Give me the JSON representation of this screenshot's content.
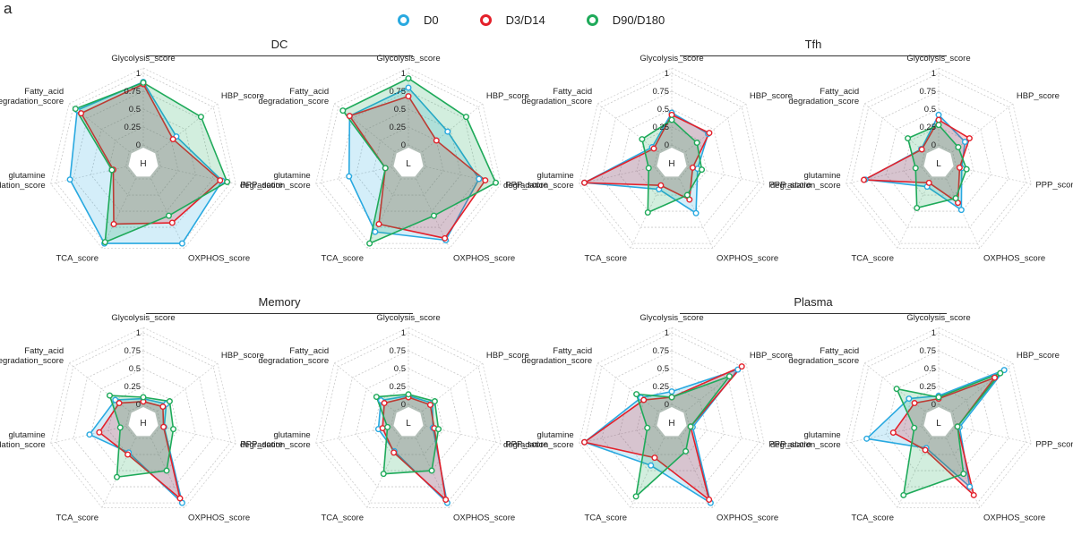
{
  "panel_letter": "a",
  "legend": [
    {
      "label": "D0",
      "color": "#29a9e0"
    },
    {
      "label": "D3/D14",
      "color": "#e4202a"
    },
    {
      "label": "D90/D180",
      "color": "#1faa5a"
    }
  ],
  "groups": [
    {
      "title": "DC"
    },
    {
      "title": "Tfh"
    },
    {
      "title": "Memory"
    },
    {
      "title": "Plasma"
    }
  ],
  "chart_data": {
    "type": "radar",
    "axes": [
      "Glycolysis_score",
      "HBP_score",
      "PPP_score",
      "OXPHOS_score",
      "TCA_score",
      "glutamine degradation_score",
      "Fatty_acid degradation_score"
    ],
    "tick_labels": [
      "0",
      "0.25",
      "0.5",
      "0.75",
      "1"
    ],
    "range": [
      0,
      1
    ],
    "series_names": [
      "D0",
      "D3/D14",
      "D90/D180"
    ],
    "charts": [
      {
        "group": "DC",
        "center_label": "H",
        "series": [
          {
            "name": "D0",
            "values": [
              0.88,
              0.34,
              0.88,
              1.0,
              1.0,
              0.8,
              0.93
            ]
          },
          {
            "name": "D3/D14",
            "values": [
              0.85,
              0.28,
              0.85,
              0.68,
              0.7,
              0.18,
              0.86
            ]
          },
          {
            "name": "D90/D180",
            "values": [
              0.87,
              0.78,
              0.95,
              0.57,
              0.98,
              0.2,
              0.96
            ]
          }
        ]
      },
      {
        "group": "DC",
        "center_label": "L",
        "series": [
          {
            "name": "D0",
            "values": [
              0.8,
              0.45,
              0.76,
              0.95,
              0.82,
              0.6,
              0.8
            ]
          },
          {
            "name": "D3/D14",
            "values": [
              0.68,
              0.25,
              0.85,
              0.92,
              0.7,
              0.08,
              0.8
            ]
          },
          {
            "name": "D90/D180",
            "values": [
              0.93,
              0.78,
              1.0,
              0.57,
              1.0,
              0.08,
              0.92
            ]
          }
        ]
      },
      {
        "group": "Tfh",
        "center_label": "H",
        "series": [
          {
            "name": "D0",
            "values": [
              0.45,
              0.4,
              0.12,
              0.53,
              0.16,
              1.0,
              0.1
            ]
          },
          {
            "name": "D3/D14",
            "values": [
              0.42,
              0.42,
              0.05,
              0.32,
              0.1,
              1.0,
              0.07
            ]
          },
          {
            "name": "D90/D180",
            "values": [
              0.35,
              0.2,
              0.18,
              0.25,
              0.52,
              0.08,
              0.28
            ]
          }
        ]
      },
      {
        "group": "Tfh",
        "center_label": "L",
        "series": [
          {
            "name": "D0",
            "values": [
              0.42,
              0.22,
              0.08,
              0.48,
              0.12,
              0.8,
              0.06
            ]
          },
          {
            "name": "D3/D14",
            "values": [
              0.35,
              0.3,
              0.05,
              0.37,
              0.06,
              0.82,
              0.05
            ]
          },
          {
            "name": "D90/D180",
            "values": [
              0.28,
              0.1,
              0.15,
              0.3,
              0.45,
              0.08,
              0.3
            ]
          }
        ]
      },
      {
        "group": "Memory",
        "center_label": "H",
        "series": [
          {
            "name": "D0",
            "values": [
              0.08,
              0.16,
              0.05,
              1.0,
              0.22,
              0.52,
              0.25
            ]
          },
          {
            "name": "D3/D14",
            "values": [
              0.04,
              0.1,
              0.04,
              0.93,
              0.25,
              0.38,
              0.18
            ]
          },
          {
            "name": "D90/D180",
            "values": [
              0.1,
              0.22,
              0.18,
              0.5,
              0.6,
              0.08,
              0.35
            ]
          }
        ]
      },
      {
        "group": "Memory",
        "center_label": "L",
        "series": [
          {
            "name": "D0",
            "values": [
              0.12,
              0.18,
              0.1,
              1.0,
              0.2,
              0.18,
              0.24
            ]
          },
          {
            "name": "D3/D14",
            "values": [
              0.1,
              0.14,
              0.12,
              0.95,
              0.22,
              0.12,
              0.18
            ]
          },
          {
            "name": "D90/D180",
            "values": [
              0.14,
              0.22,
              0.18,
              0.5,
              0.55,
              0.05,
              0.32
            ]
          }
        ]
      },
      {
        "group": "Plasma",
        "center_label": "H",
        "series": [
          {
            "name": "D0",
            "values": [
              0.18,
              0.93,
              0.05,
              1.0,
              0.42,
              1.0,
              0.3
            ]
          },
          {
            "name": "D3/D14",
            "values": [
              0.1,
              1.0,
              0.02,
              0.95,
              0.3,
              1.0,
              0.25
            ]
          },
          {
            "name": "D90/D180",
            "values": [
              0.1,
              0.78,
              0.02,
              0.2,
              0.9,
              0.1,
              0.38
            ]
          }
        ]
      },
      {
        "group": "Plasma",
        "center_label": "L",
        "series": [
          {
            "name": "D0",
            "values": [
              0.12,
              0.92,
              0.05,
              0.75,
              0.15,
              0.78,
              0.28
            ]
          },
          {
            "name": "D3/D14",
            "values": [
              0.08,
              0.75,
              0.02,
              0.88,
              0.18,
              0.4,
              0.18
            ]
          },
          {
            "name": "D90/D180",
            "values": [
              0.1,
              0.85,
              0.02,
              0.55,
              0.88,
              0.1,
              0.5
            ]
          }
        ]
      }
    ]
  }
}
